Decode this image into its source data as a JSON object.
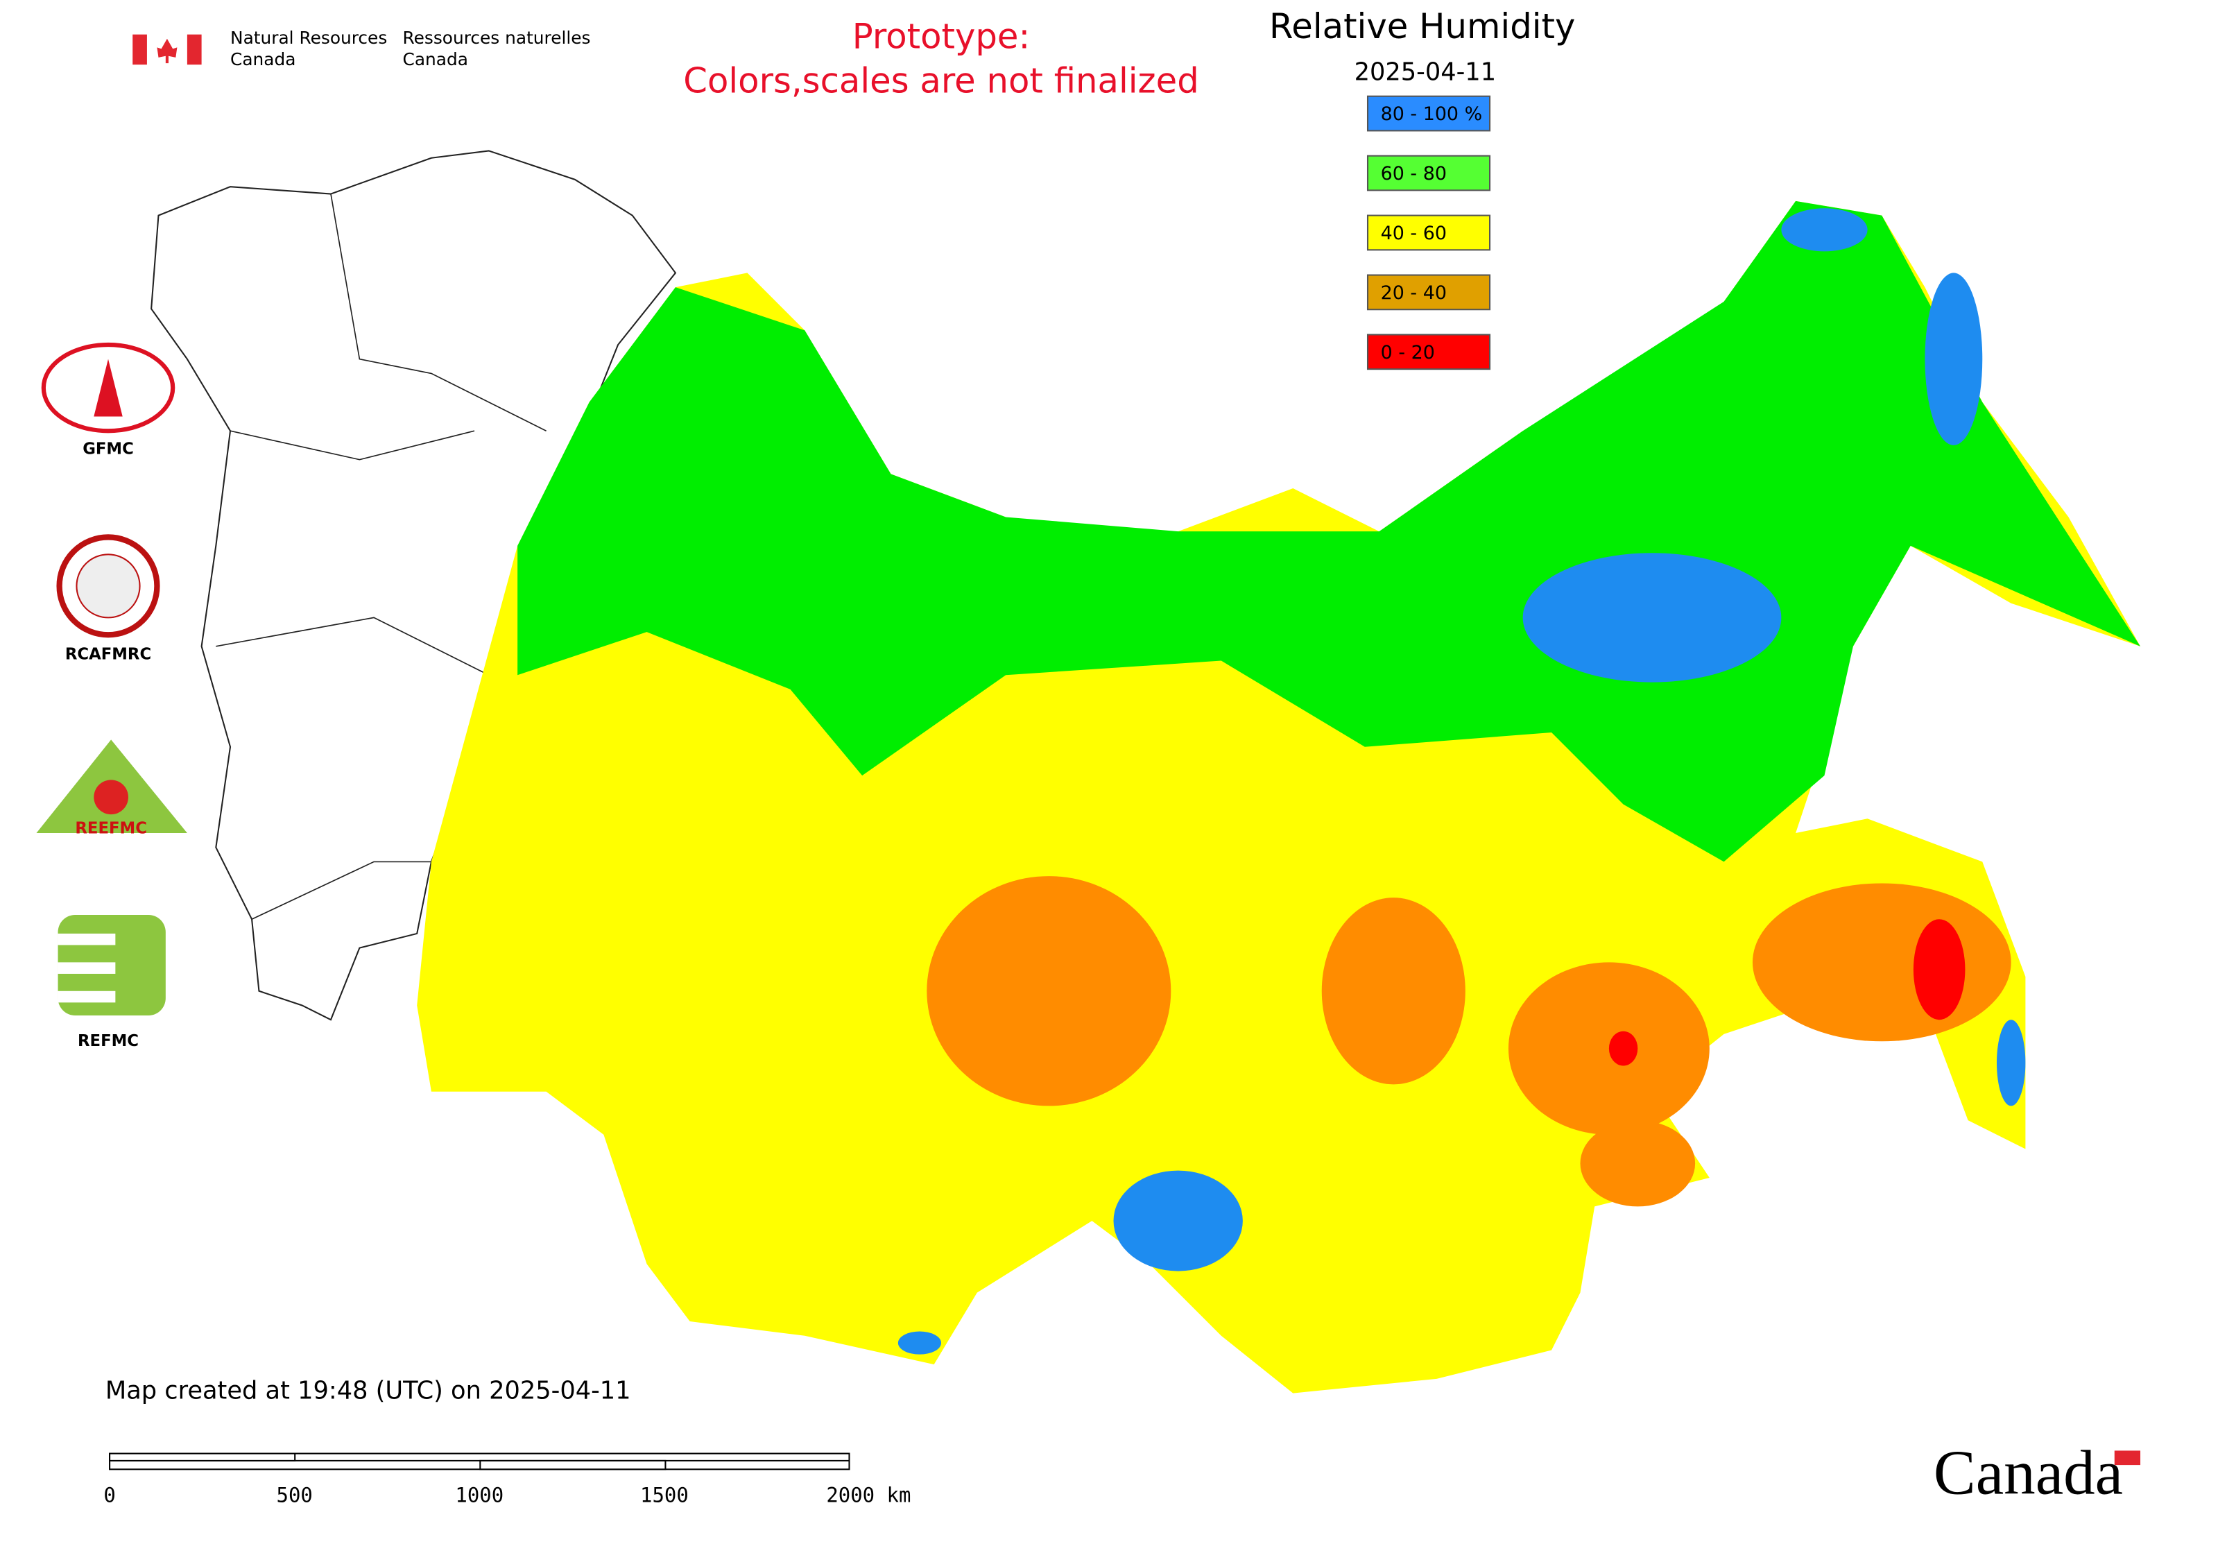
{
  "header": {
    "org_en": [
      "Natural Resources",
      "Canada"
    ],
    "org_fr": [
      "Ressources naturelles",
      "Canada"
    ],
    "notice": [
      "Prototype:",
      "Colors,scales are not finalized"
    ]
  },
  "map": {
    "title": "Relative Humidity",
    "date": "2025-04-11",
    "legend": [
      {
        "label": "80 - 100 %",
        "color": "#2a8cff"
      },
      {
        "label": "60 - 80",
        "color": "#55ff33"
      },
      {
        "label": "40 - 60",
        "color": "#ffff00"
      },
      {
        "label": "20 - 40",
        "color": "#e0a000"
      },
      {
        "label": "0 - 20",
        "color": "#ff0000"
      }
    ],
    "created": "Map created at 19:48 (UTC) on 2025-04-11",
    "scale_bar": [
      "0",
      "500",
      "1000",
      "1500",
      "2000 km"
    ]
  },
  "logos": [
    "GFMC",
    "RCAFMRC",
    "REEFMC",
    "REFMC"
  ],
  "footer": {
    "wordmark": "Canada"
  }
}
